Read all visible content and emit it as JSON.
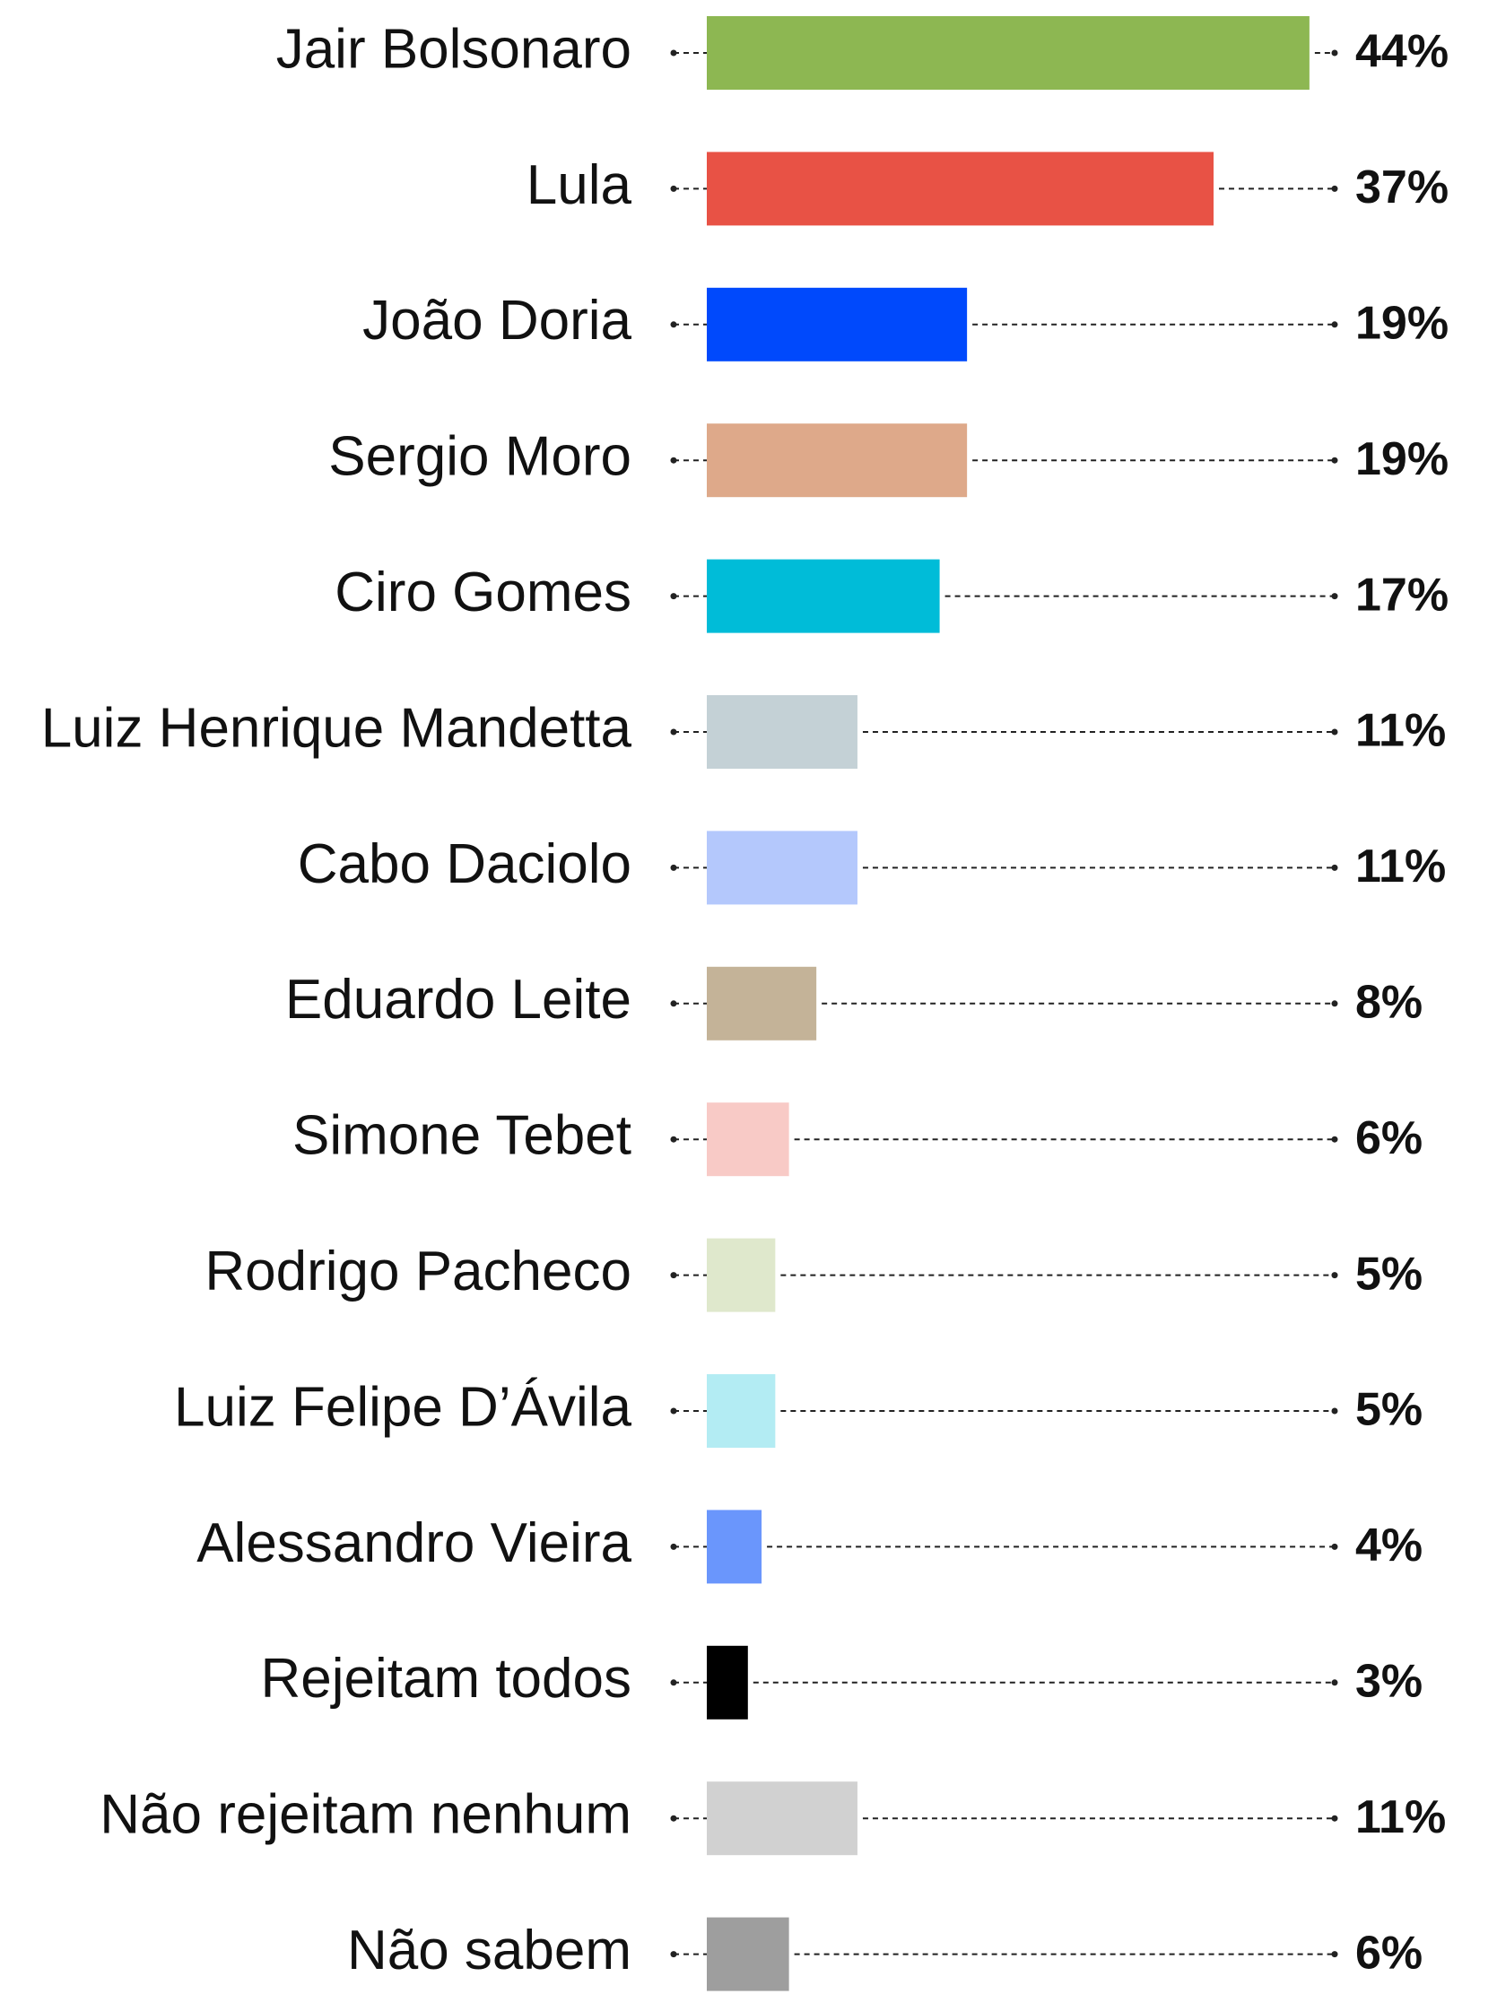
{
  "chart_data": {
    "type": "bar",
    "orientation": "horizontal",
    "categories": [
      "Jair Bolsonaro",
      "Lula",
      "João Doria",
      "Sergio Moro",
      "Ciro Gomes",
      "Luiz Henrique Mandetta",
      "Cabo Daciolo",
      "Eduardo Leite",
      "Simone Tebet",
      "Rodrigo Pacheco",
      "Luiz Felipe D’Ávila",
      "Alessandro Vieira",
      "Rejeitam todos",
      "Não rejeitam nenhum",
      "Não sabem"
    ],
    "values": [
      44,
      37,
      19,
      19,
      17,
      11,
      11,
      8,
      6,
      5,
      5,
      4,
      3,
      11,
      6
    ],
    "value_labels": [
      "44%",
      "37%",
      "19%",
      "19%",
      "17%",
      "11%",
      "11%",
      "8%",
      "6%",
      "5%",
      "5%",
      "4%",
      "3%",
      "11%",
      "6%"
    ],
    "colors": [
      "#8db752",
      "#e85245",
      "#0049fc",
      "#dea98a",
      "#00bcd8",
      "#c4d1d6",
      "#b4c8fc",
      "#c4b398",
      "#f8cac6",
      "#dfe8cc",
      "#b3ecf3",
      "#6a96fc",
      "#000000",
      "#d1d1d1",
      "#9e9e9e"
    ]
  }
}
